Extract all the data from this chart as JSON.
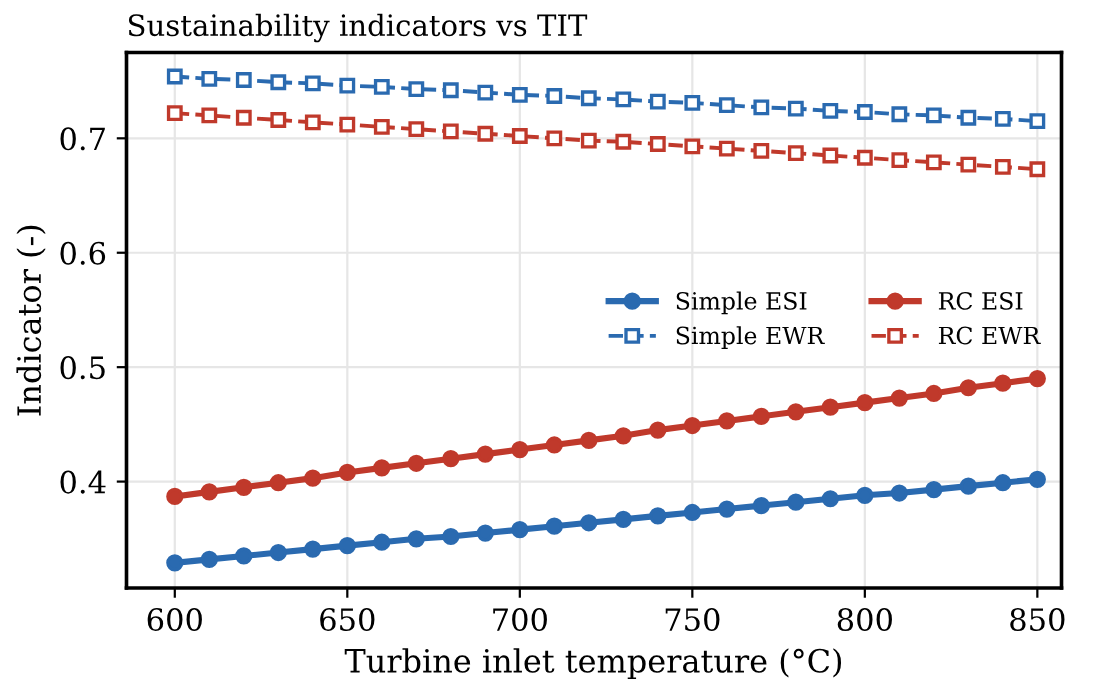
{
  "chart_data": {
    "type": "line",
    "title": "Sustainability indicators vs TIT",
    "xlabel": "Turbine inlet temperature (°C)",
    "ylabel": "Indicator (-)",
    "x": [
      600,
      610,
      620,
      630,
      640,
      650,
      660,
      670,
      680,
      690,
      700,
      710,
      720,
      730,
      740,
      750,
      760,
      770,
      780,
      790,
      800,
      810,
      820,
      830,
      840,
      850
    ],
    "xlim": [
      586,
      857
    ],
    "xticks": [
      600,
      650,
      700,
      750,
      800,
      850
    ],
    "ylim": [
      0.307,
      0.775
    ],
    "yticks": [
      0.4,
      0.5,
      0.6,
      0.7
    ],
    "grid": true,
    "legend": "center right",
    "series": [
      {
        "name": "Simple ESI",
        "color": "#2a6ab0",
        "marker": "circle",
        "line_style": "solid",
        "values": [
          0.329,
          0.332,
          0.335,
          0.338,
          0.341,
          0.344,
          0.347,
          0.35,
          0.352,
          0.355,
          0.358,
          0.361,
          0.364,
          0.367,
          0.37,
          0.373,
          0.376,
          0.379,
          0.382,
          0.385,
          0.388,
          0.39,
          0.393,
          0.396,
          0.399,
          0.402
        ]
      },
      {
        "name": "Simple EWR",
        "color": "#2a6ab0",
        "marker": "square",
        "line_style": "dashed",
        "values": [
          0.754,
          0.752,
          0.751,
          0.749,
          0.748,
          0.746,
          0.745,
          0.743,
          0.742,
          0.74,
          0.738,
          0.737,
          0.735,
          0.734,
          0.732,
          0.731,
          0.729,
          0.727,
          0.726,
          0.724,
          0.723,
          0.721,
          0.72,
          0.718,
          0.717,
          0.715
        ]
      },
      {
        "name": "RC ESI",
        "color": "#c0392b",
        "marker": "circle",
        "line_style": "solid",
        "values": [
          0.387,
          0.391,
          0.395,
          0.399,
          0.403,
          0.408,
          0.412,
          0.416,
          0.42,
          0.424,
          0.428,
          0.432,
          0.436,
          0.44,
          0.445,
          0.449,
          0.453,
          0.457,
          0.461,
          0.465,
          0.469,
          0.473,
          0.477,
          0.482,
          0.486,
          0.49
        ]
      },
      {
        "name": "RC EWR",
        "color": "#c0392b",
        "marker": "square",
        "line_style": "dashed",
        "values": [
          0.722,
          0.72,
          0.718,
          0.716,
          0.714,
          0.712,
          0.71,
          0.708,
          0.706,
          0.704,
          0.702,
          0.7,
          0.698,
          0.697,
          0.695,
          0.693,
          0.691,
          0.689,
          0.687,
          0.685,
          0.683,
          0.681,
          0.679,
          0.677,
          0.675,
          0.673
        ]
      }
    ]
  }
}
